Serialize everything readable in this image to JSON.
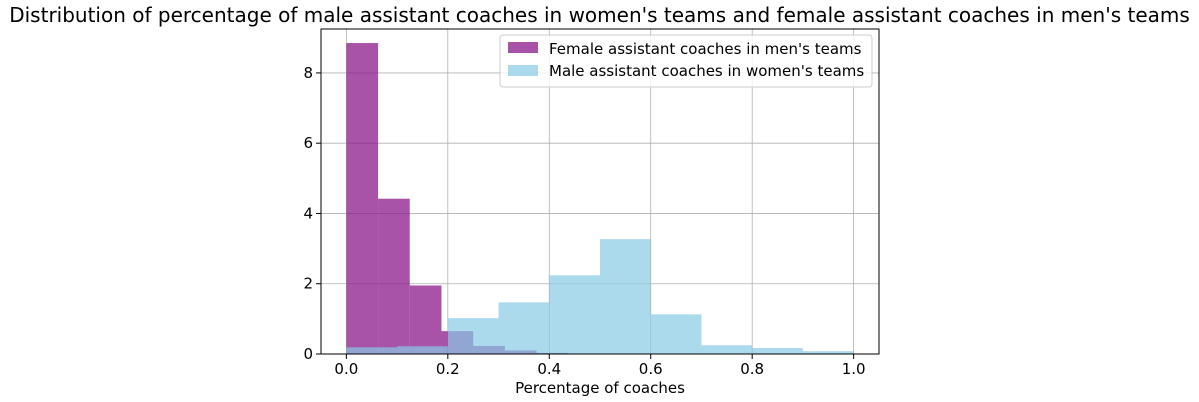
{
  "chart_data": {
    "type": "bar",
    "title": "Distribution of percentage of male assistant coaches in women's teams and female assistant coaches in men's teams",
    "xlabel": "Percentage of coaches",
    "ylabel": "",
    "xlim": [
      -0.05,
      1.05
    ],
    "ylim": [
      0,
      9.25
    ],
    "x_ticks": [
      0.0,
      0.2,
      0.4,
      0.6,
      0.8,
      1.0
    ],
    "x_tick_labels": [
      "0.0",
      "0.2",
      "0.4",
      "0.6",
      "0.8",
      "1.0"
    ],
    "y_ticks": [
      0,
      2,
      4,
      6,
      8
    ],
    "y_tick_labels": [
      "0",
      "2",
      "4",
      "6",
      "8"
    ],
    "grid": true,
    "legend_position": "top-right",
    "series": [
      {
        "name": "Female assistant coaches in men's teams",
        "color": "#8b1a8b",
        "opacity": 0.75,
        "bin_edges": [
          0.0,
          0.0625,
          0.125,
          0.1875,
          0.25,
          0.3125,
          0.375,
          0.4375,
          0.5,
          0.5625,
          0.625
        ],
        "values": [
          8.85,
          4.42,
          1.95,
          0.65,
          0.23,
          0.1,
          0.03,
          0.0,
          0.0,
          0.0
        ]
      },
      {
        "name": "Male assistant coaches in women's teams",
        "color": "#87cbe6",
        "opacity": 0.7,
        "bin_edges": [
          0.0,
          0.1,
          0.2,
          0.3,
          0.4,
          0.5,
          0.6,
          0.7,
          0.8,
          0.9,
          1.0
        ],
        "values": [
          0.19,
          0.22,
          1.02,
          1.47,
          2.24,
          3.27,
          1.13,
          0.25,
          0.17,
          0.08
        ]
      }
    ]
  }
}
